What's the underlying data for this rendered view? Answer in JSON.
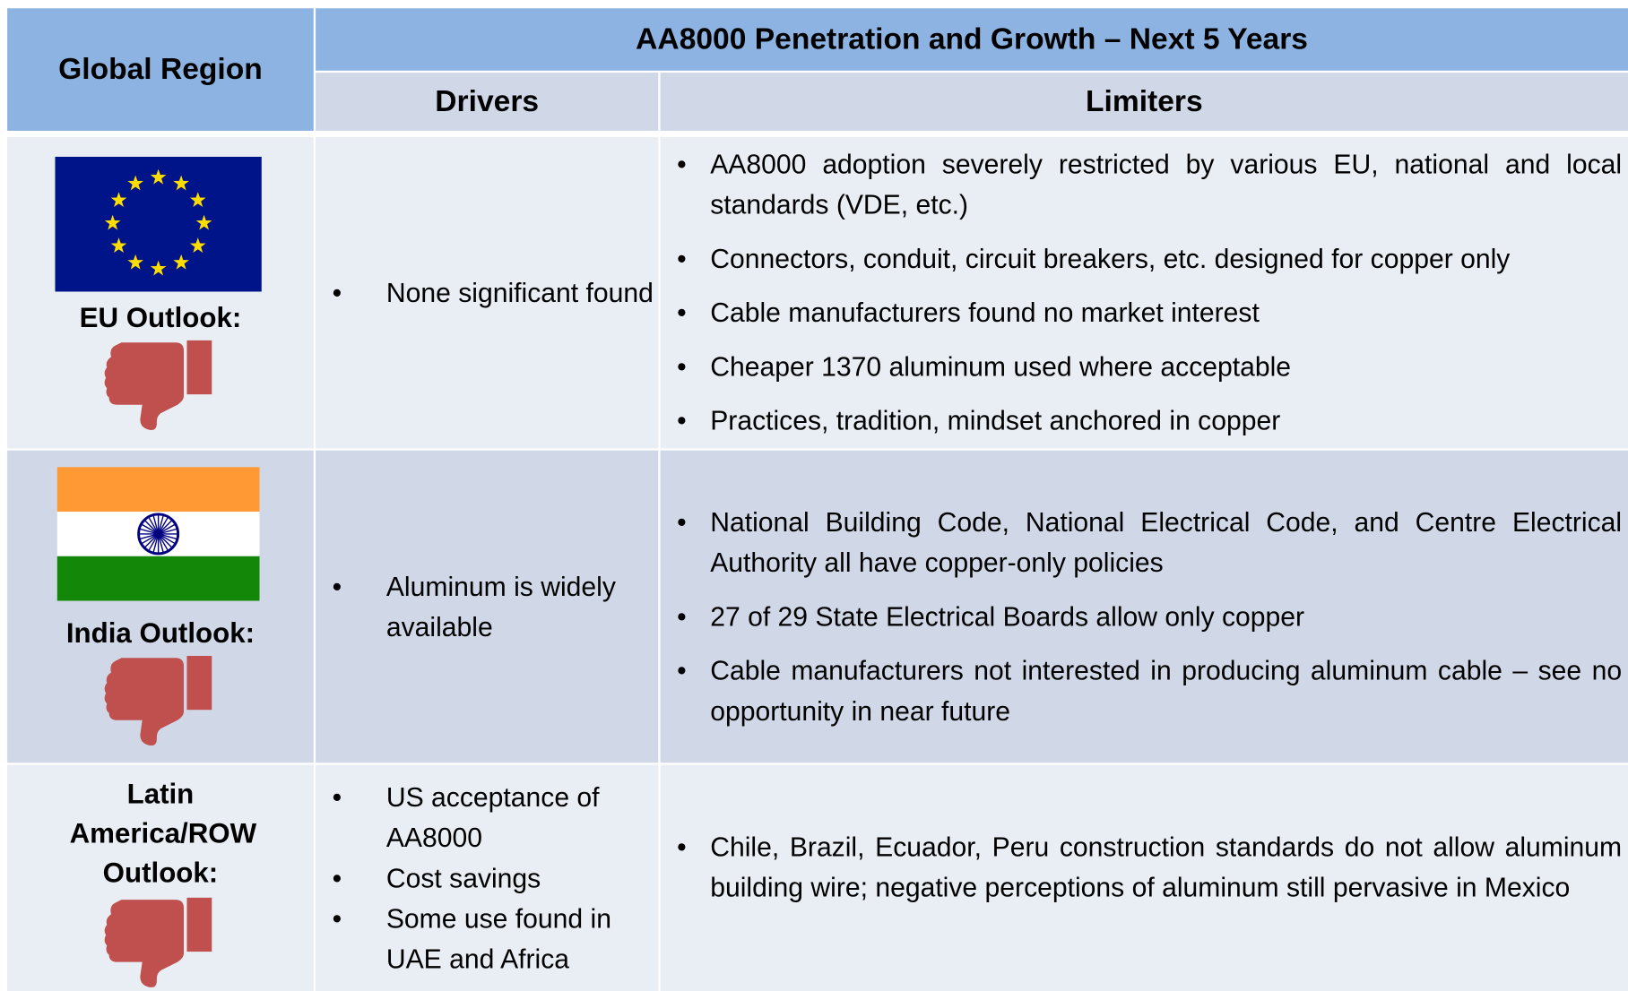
{
  "header": {
    "region_label": "Global Region",
    "title": "AA8000 Penetration and Growth – Next 5 Years",
    "drivers_label": "Drivers",
    "limiters_label": "Limiters"
  },
  "rows": [
    {
      "region": "EU Outlook:",
      "drivers": [
        "None significant found"
      ],
      "limiters": [
        "AA8000 adoption severely restricted by various EU, national and local standards (VDE, etc.)",
        "Connectors, conduit, circuit breakers, etc. designed for copper only",
        "Cable manufacturers found no market interest",
        "Cheaper 1370 aluminum used where acceptable",
        "Practices, tradition, mindset anchored in copper"
      ]
    },
    {
      "region": "India Outlook:",
      "drivers": [
        "Aluminum is widely available"
      ],
      "limiters": [
        "National Building Code, National Electrical Code, and Centre Electrical Authority all have copper-only policies",
        "27 of 29 State Electrical Boards allow only copper",
        "Cable manufacturers not interested in producing aluminum cable – see no opportunity in near future"
      ]
    },
    {
      "region": "Latin America/ROW Outlook:",
      "drivers": [
        "US acceptance of AA8000",
        "Cost savings",
        "Some use found in UAE and Africa"
      ],
      "limiters": [
        "Chile, Brazil, Ecuador, Peru construction standards do not allow aluminum building wire; negative perceptions of aluminum still pervasive in Mexico"
      ]
    }
  ]
}
